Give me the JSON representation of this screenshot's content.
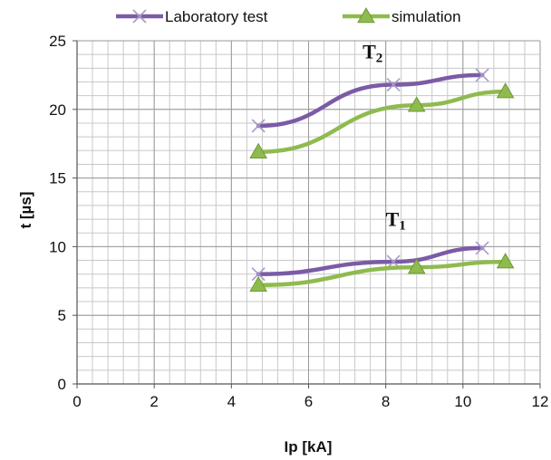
{
  "chart_data": {
    "type": "line",
    "xlabel": "Ip [kA]",
    "ylabel": "t [µs]",
    "xlim": [
      0,
      12
    ],
    "ylim": [
      0,
      25
    ],
    "xticks": [
      0,
      2,
      4,
      6,
      8,
      10,
      12
    ],
    "yticks": [
      0,
      5,
      10,
      15,
      20,
      25
    ],
    "minor_grid": {
      "x_step": 0.4,
      "y_step": 1
    },
    "grid": true,
    "legend": {
      "placement": "top-center"
    },
    "series": [
      {
        "name": "Laboratory test",
        "group": "T2",
        "color": "#7b5ba6",
        "marker": "x",
        "x": [
          4.7,
          8.2,
          10.5
        ],
        "y": [
          18.8,
          21.8,
          22.5
        ]
      },
      {
        "name": "simulation",
        "group": "T2",
        "color": "#8fbb4e",
        "marker": "triangle",
        "x": [
          4.7,
          8.8,
          11.1
        ],
        "y": [
          16.9,
          20.3,
          21.3
        ]
      },
      {
        "name": "Laboratory test",
        "group": "T1",
        "color": "#7b5ba6",
        "marker": "x",
        "x": [
          4.7,
          8.2,
          10.5
        ],
        "y": [
          8.0,
          8.9,
          9.9
        ]
      },
      {
        "name": "simulation",
        "group": "T1",
        "color": "#8fbb4e",
        "marker": "triangle",
        "x": [
          4.7,
          8.8,
          11.1
        ],
        "y": [
          7.2,
          8.5,
          8.9
        ]
      }
    ],
    "annotations": [
      {
        "text": "T",
        "sub": "2",
        "x": 7.4,
        "y": 23.7
      },
      {
        "text": "T",
        "sub": "1",
        "x": 8.0,
        "y": 11.5
      }
    ]
  }
}
